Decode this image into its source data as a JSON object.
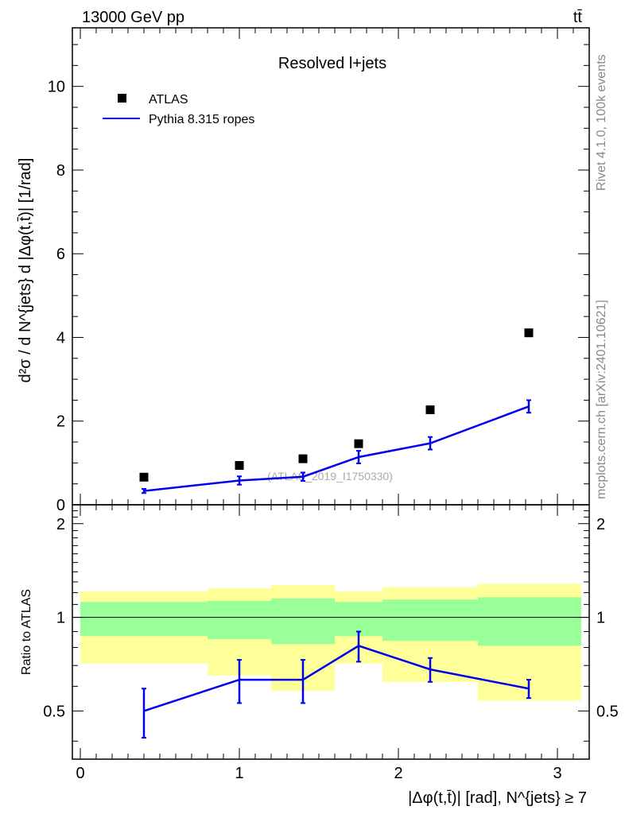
{
  "chart_data": [
    {
      "type": "scatter",
      "panel": "main",
      "energy_label": "13000 GeV pp",
      "process_label": "tt̄",
      "title": "Resolved l+jets",
      "ylabel": "d²σ / d N^{jets} d |Δφ(t,t̄)| [1/rad]",
      "ylim": [
        0,
        11.4
      ],
      "yticks": [
        "0",
        "2",
        "4",
        "6",
        "8",
        "10"
      ],
      "legend": {
        "position": "top-left",
        "entries": [
          {
            "name": "ATLAS",
            "marker": "square",
            "color": "#000000"
          },
          {
            "name": "Pythia 8.315 ropes",
            "marker": "line",
            "color": "#0000ee"
          }
        ]
      },
      "series": [
        {
          "name": "ATLAS",
          "x": [
            0.4,
            1.0,
            1.4,
            1.75,
            2.2,
            2.82
          ],
          "y": [
            0.66,
            0.94,
            1.1,
            1.46,
            2.27,
            4.11
          ]
        },
        {
          "name": "Pythia 8.315 ropes",
          "x": [
            0.4,
            1.0,
            1.4,
            1.75,
            2.2,
            2.82
          ],
          "y": [
            0.33,
            0.58,
            0.67,
            1.14,
            1.47,
            2.35
          ],
          "err": [
            0.05,
            0.1,
            0.1,
            0.15,
            0.15,
            0.15
          ]
        }
      ],
      "watermark": "(ATLAS_2019_I1750330)",
      "side_label_top": "Rivet 4.1.0,  100k events",
      "side_label_bottom": "mcplots.cern.ch [arXiv:2401.10621]"
    },
    {
      "type": "line",
      "panel": "ratio",
      "ylabel": "Ratio to ATLAS",
      "xlabel": "|Δφ(t,t̄)| [rad], N^{jets} ≥ 7",
      "xlim": [
        -0.05,
        3.2
      ],
      "ylim": [
        0.35,
        2.3
      ],
      "xticks": [
        "0",
        "1",
        "2",
        "3"
      ],
      "yticks": [
        "0.5",
        "1",
        "2"
      ],
      "bins": [
        {
          "lo": 0.0,
          "hi": 0.8,
          "green": [
            0.87,
            1.12
          ],
          "yellow": [
            0.71,
            1.21
          ]
        },
        {
          "lo": 0.8,
          "hi": 1.2,
          "green": [
            0.85,
            1.13
          ],
          "yellow": [
            0.65,
            1.24
          ]
        },
        {
          "lo": 1.2,
          "hi": 1.6,
          "green": [
            0.82,
            1.15
          ],
          "yellow": [
            0.58,
            1.27
          ]
        },
        {
          "lo": 1.6,
          "hi": 1.9,
          "green": [
            0.87,
            1.12
          ],
          "yellow": [
            0.71,
            1.21
          ]
        },
        {
          "lo": 1.9,
          "hi": 2.5,
          "green": [
            0.84,
            1.14
          ],
          "yellow": [
            0.62,
            1.25
          ]
        },
        {
          "lo": 2.5,
          "hi": 3.15,
          "green": [
            0.81,
            1.16
          ],
          "yellow": [
            0.54,
            1.28
          ]
        }
      ],
      "series": [
        {
          "name": "Pythia 8.315 ropes",
          "x": [
            0.4,
            1.0,
            1.4,
            1.75,
            2.2,
            2.82
          ],
          "y": [
            0.5,
            0.63,
            0.63,
            0.81,
            0.68,
            0.59
          ],
          "err": [
            0.09,
            0.1,
            0.1,
            0.09,
            0.06,
            0.04
          ]
        }
      ],
      "colors": {
        "green": "#99ff99",
        "yellow": "#ffff99",
        "line": "#0000ee"
      }
    }
  ]
}
